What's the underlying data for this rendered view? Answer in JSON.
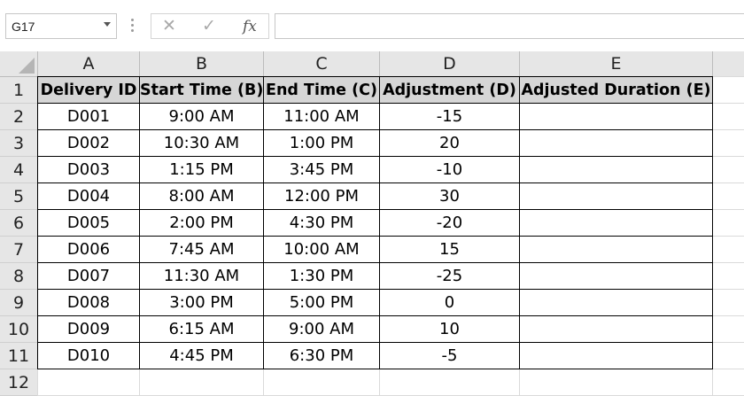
{
  "name_box": {
    "value": "G17"
  },
  "formula_bar": {
    "cancel_glyph": "✕",
    "enter_glyph": "✓",
    "fx_label": "fx",
    "value": ""
  },
  "columns": [
    "A",
    "B",
    "C",
    "D",
    "E"
  ],
  "rows": [
    "1",
    "2",
    "3",
    "4",
    "5",
    "6",
    "7",
    "8",
    "9",
    "10",
    "11",
    "12"
  ],
  "table": {
    "headers": [
      "Delivery ID",
      "Start Time (B)",
      "End Time (C)",
      "Adjustment (D)",
      "Adjusted Duration (E)"
    ],
    "rows": [
      [
        "D001",
        "9:00 AM",
        "11:00 AM",
        "-15",
        ""
      ],
      [
        "D002",
        "10:30 AM",
        "1:00 PM",
        "20",
        ""
      ],
      [
        "D003",
        "1:15 PM",
        "3:45 PM",
        "-10",
        ""
      ],
      [
        "D004",
        "8:00 AM",
        "12:00 PM",
        "30",
        ""
      ],
      [
        "D005",
        "2:00 PM",
        "4:30 PM",
        "-20",
        ""
      ],
      [
        "D006",
        "7:45 AM",
        "10:00 AM",
        "15",
        ""
      ],
      [
        "D007",
        "11:30 AM",
        "1:30 PM",
        "-25",
        ""
      ],
      [
        "D008",
        "3:00 PM",
        "5:00 PM",
        "0",
        ""
      ],
      [
        "D009",
        "6:15 AM",
        "9:00 AM",
        "10",
        ""
      ],
      [
        "D010",
        "4:45 PM",
        "6:30 PM",
        "-5",
        ""
      ]
    ]
  },
  "colors": {
    "header_fill": "#d6d6d6",
    "border": "#000000",
    "gridline": "#dadada",
    "chrome": "#e6e6e6"
  }
}
